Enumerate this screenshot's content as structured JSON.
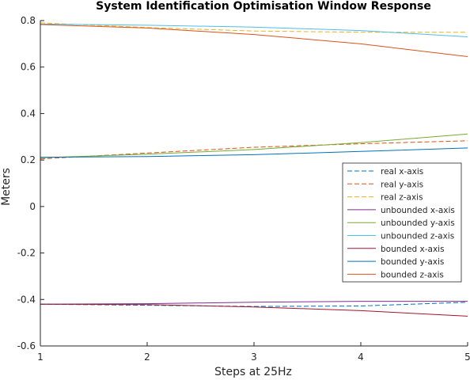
{
  "chart_data": {
    "type": "line",
    "title": "System Identification Optimisation Window Response",
    "xlabel": "Steps at 25Hz",
    "ylabel": "Meters",
    "xlim": [
      1,
      5
    ],
    "ylim": [
      -0.6,
      0.8
    ],
    "xticks": [
      1,
      2,
      3,
      4,
      5
    ],
    "xtick_labels": [
      "1",
      "2",
      "3",
      "4",
      "5"
    ],
    "yticks": [
      -0.6,
      -0.4,
      -0.2,
      0,
      0.2,
      0.4,
      0.6,
      0.8
    ],
    "ytick_labels": [
      "-0.6",
      "-0.4",
      "-0.2",
      "0",
      "0.2",
      "0.4",
      "0.6",
      "0.8"
    ],
    "grid": false,
    "legend_position": "right",
    "x": [
      1,
      2,
      3,
      4,
      5
    ],
    "series": [
      {
        "name": "real x-axis",
        "color": "#0072BD",
        "dashed": true,
        "values": [
          -0.42,
          -0.425,
          -0.43,
          -0.428,
          -0.412
        ]
      },
      {
        "name": "real y-axis",
        "color": "#D95319",
        "dashed": true,
        "values": [
          0.205,
          0.23,
          0.255,
          0.27,
          0.283
        ]
      },
      {
        "name": "real z-axis",
        "color": "#EDB120",
        "dashed": true,
        "values": [
          0.79,
          0.77,
          0.755,
          0.75,
          0.75
        ]
      },
      {
        "name": "unbounded x-axis",
        "color": "#7E2F8E",
        "dashed": false,
        "values": [
          -0.42,
          -0.418,
          -0.412,
          -0.408,
          -0.408
        ]
      },
      {
        "name": "unbounded y-axis",
        "color": "#77AC30",
        "dashed": false,
        "values": [
          0.21,
          0.225,
          0.245,
          0.275,
          0.312
        ]
      },
      {
        "name": "unbounded z-axis",
        "color": "#4DBEEE",
        "dashed": false,
        "values": [
          0.785,
          0.78,
          0.772,
          0.757,
          0.73
        ]
      },
      {
        "name": "bounded x-axis",
        "color": "#A2142F",
        "dashed": false,
        "values": [
          -0.42,
          -0.422,
          -0.432,
          -0.448,
          -0.472
        ]
      },
      {
        "name": "bounded y-axis",
        "color": "#0072BD",
        "dashed": false,
        "values": [
          0.212,
          0.215,
          0.223,
          0.237,
          0.252
        ]
      },
      {
        "name": "bounded z-axis",
        "color": "#D95319",
        "dashed": false,
        "values": [
          0.783,
          0.768,
          0.74,
          0.7,
          0.645
        ]
      }
    ]
  }
}
